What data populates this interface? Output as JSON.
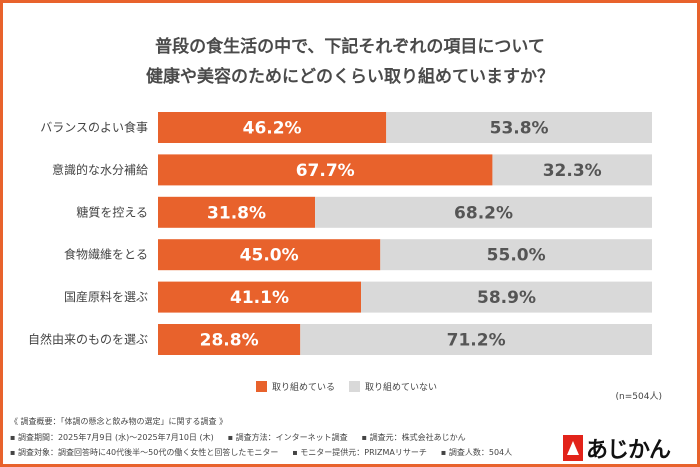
{
  "chart_data": {
    "type": "bar",
    "stacked": true,
    "orientation": "horizontal",
    "title": [
      "普段の食生活の中で、下記それぞれの項目について",
      "健康や美容のためにどのくらい取り組めていますか？"
    ],
    "categories": [
      "バランスのよい食事",
      "意識的な水分補給",
      "糖質を控える",
      "食物繊維をとる",
      "国産原料を選ぶ",
      "自然由来のものを選ぶ"
    ],
    "series": [
      {
        "name": "取り組めている",
        "color": "#e8622c",
        "values": [
          46.2,
          67.7,
          31.8,
          45.0,
          41.1,
          28.8
        ]
      },
      {
        "name": "取り組めていない",
        "color": "#d9d9d9",
        "values": [
          53.8,
          32.3,
          68.2,
          55.0,
          58.9,
          71.2
        ]
      }
    ],
    "xlim": [
      0,
      100
    ],
    "legend": "bottom",
    "note": "(n=504人)"
  },
  "footer": {
    "lines": [
      [
        "《 調査概要：「体調の懸念と飲み物の選定」に関する調査 》"
      ],
      [
        "▪ 調査期間：2025年7月9日 (水)～2025年7月10日 (木)",
        "▪ 調査方法：インターネット調査",
        "▪ 調査元：株式会社あじかん"
      ],
      [
        "▪ 調査対象：調査回答時に40代後半～50代の働く女性と回答したモニター",
        "▪ モニター提供元：PRIZMAリサーチ",
        "▪ 調査人数：504人"
      ]
    ],
    "logo": "あじかん"
  }
}
